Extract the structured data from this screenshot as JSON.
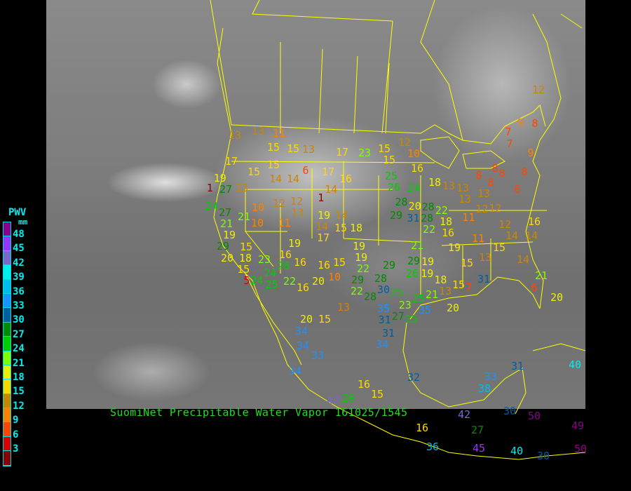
{
  "title": "SuomiNet Precipitable Water Vapor 161025/1545",
  "legend": {
    "title": "PWV",
    "unit": "mm",
    "labels": [
      "48",
      "45",
      "42",
      "39",
      "36",
      "33",
      "30",
      "27",
      "24",
      "21",
      "18",
      "15",
      "12",
      "9",
      "6",
      "3"
    ],
    "colors": [
      "#8b008b",
      "#9933ff",
      "#7b68cc",
      "#00eeee",
      "#00bbee",
      "#1e90ff",
      "#005fa0",
      "#008b00",
      "#00cd00",
      "#7fff00",
      "#eeee00",
      "#ffd700",
      "#cd8500",
      "#ff8000",
      "#ff4500",
      "#dd0000",
      "#8b0000"
    ]
  },
  "border_color": "#ffff00",
  "stations": [
    12,
    9,
    8,
    7,
    7,
    9,
    8,
    6,
    8,
    8,
    8,
    8,
    13,
    13,
    13,
    18,
    16,
    10,
    12,
    15,
    15,
    23,
    17,
    13,
    15,
    15,
    13,
    11,
    13,
    17,
    19,
    1,
    27,
    13,
    15,
    15,
    14,
    14,
    6,
    17,
    16,
    14,
    1,
    25,
    26,
    24,
    28,
    20,
    22,
    28,
    29,
    31,
    28,
    22,
    18,
    16,
    13,
    12,
    12,
    11,
    12,
    14,
    14,
    16,
    11,
    13,
    15,
    19,
    15,
    14,
    21,
    6,
    20,
    19,
    19,
    18,
    13,
    15,
    21,
    25,
    23,
    35,
    20,
    7,
    31,
    21,
    29,
    26,
    29,
    28,
    29,
    22,
    19,
    19,
    18,
    15,
    14,
    14,
    19,
    17,
    19,
    13,
    12,
    12,
    11,
    10,
    10,
    21,
    27,
    21,
    24,
    19,
    15,
    29,
    20,
    18,
    15,
    23,
    26,
    16,
    16,
    16,
    15,
    10,
    20,
    16,
    22,
    25,
    24,
    5,
    24,
    30,
    28,
    25,
    22,
    13,
    20,
    15,
    35,
    31,
    27,
    25,
    31,
    34,
    34,
    34,
    33,
    34,
    16,
    15,
    32,
    33,
    38,
    31,
    40,
    26,
    42,
    42,
    16,
    27,
    30,
    50,
    49,
    36,
    45,
    40,
    50,
    30
  ]
}
